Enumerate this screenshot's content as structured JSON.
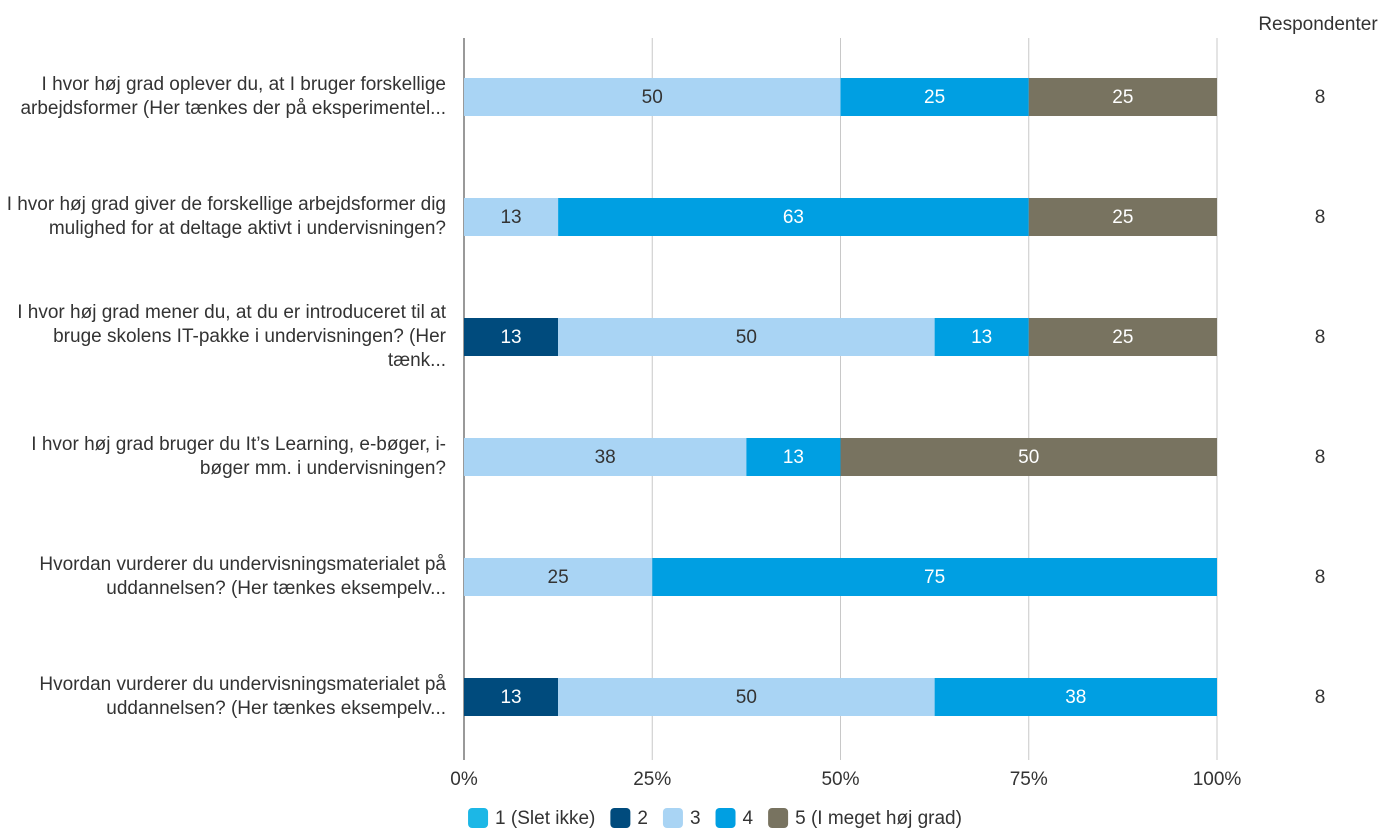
{
  "chart_data": {
    "type": "stacked_bar_horizontal",
    "categories": [
      "I hvor høj grad oplever du, at I bruger forskellige arbejdsformer (Her tænkes der på eksperimentel...",
      "I hvor høj grad giver de forskellige arbejdsformer dig mulighed for at deltage aktivt i undervisningen?",
      "I hvor høj grad mener du, at du er introduceret til at bruge skolens IT-pakke i undervisningen? (Her tænk...",
      "I hvor høj grad bruger du It’s Learning, e-bøger, i-bøger mm. i undervisningen?",
      "Hvordan vurderer du undervisningsmaterialet på uddannelsen? (Her tænkes eksempelv...",
      "Hvordan vurderer du undervisningsmaterialet på uddannelsen? (Her tænkes eksempelv..."
    ],
    "series": [
      {
        "name": "1 (Slet ikke)",
        "color": "#1cb7e6",
        "values": [
          null,
          null,
          null,
          null,
          null,
          null
        ]
      },
      {
        "name": "2",
        "color": "#004b7d",
        "values": [
          null,
          null,
          12.5,
          null,
          null,
          12.5
        ],
        "value_labels": [
          null,
          null,
          "13",
          null,
          null,
          "13"
        ]
      },
      {
        "name": "3",
        "color": "#a9d4f4",
        "values": [
          50,
          12.5,
          50,
          37.5,
          25,
          50
        ],
        "value_labels": [
          "50",
          "13",
          "50",
          "38",
          "25",
          "50"
        ]
      },
      {
        "name": "4",
        "color": "#009fe2",
        "values": [
          25,
          62.5,
          12.5,
          12.5,
          75,
          37.5
        ],
        "value_labels": [
          "25",
          "63",
          "13",
          "13",
          "75",
          "38"
        ]
      },
      {
        "name": "5 (I meget høj grad)",
        "color": "#787360",
        "values": [
          25,
          25,
          25,
          50,
          null,
          null
        ]
      }
    ],
    "xlim": [
      0,
      100
    ],
    "xticks": [
      {
        "value": 0,
        "label": "0%"
      },
      {
        "value": 25,
        "label": "25%"
      },
      {
        "value": 50,
        "label": "50%"
      },
      {
        "value": 75,
        "label": "75%"
      },
      {
        "value": 100,
        "label": "100%"
      }
    ],
    "grid": true,
    "legend": "bottom",
    "respondents": {
      "title": "Respondenter",
      "values": [
        8,
        8,
        8,
        8,
        8,
        8
      ]
    }
  }
}
